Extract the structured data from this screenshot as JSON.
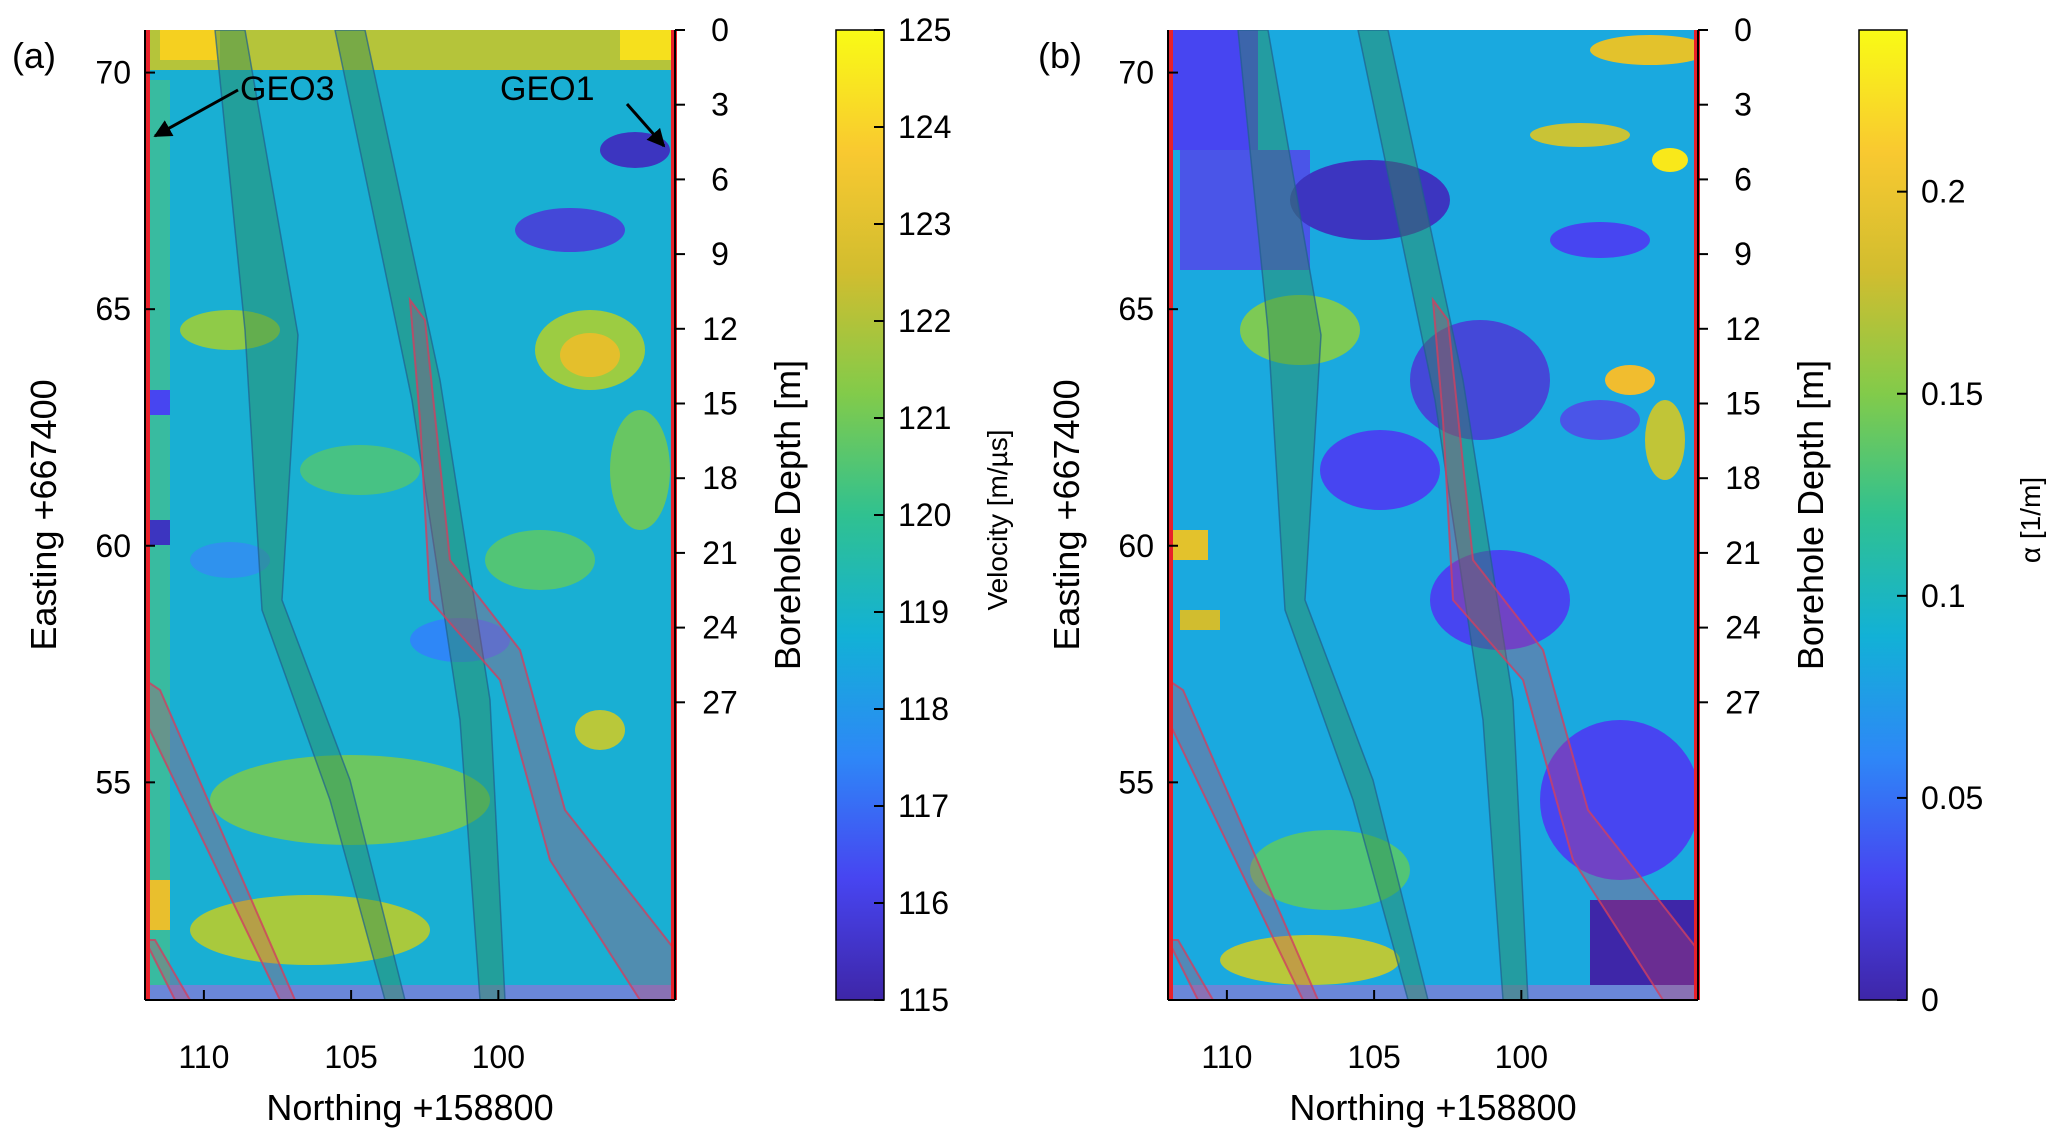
{
  "chart_data": [
    {
      "panel_label": "(a)",
      "type": "heatmap",
      "xlabel": "Northing +158800",
      "ylabel_left": "Easting +667400",
      "ylabel_right": "Borehole Depth [m]",
      "x_ticks": [
        "110",
        "105",
        "100"
      ],
      "x_tick_values": [
        110,
        105,
        100
      ],
      "xlim": [
        112,
        94
      ],
      "y_ticks": [
        "70",
        "65",
        "60",
        "55"
      ],
      "y_tick_values": [
        70,
        65,
        60,
        55
      ],
      "ylim": [
        50.4,
        70.9
      ],
      "depth_ticks": [
        "0",
        "3",
        "6",
        "9",
        "12",
        "15",
        "18",
        "21",
        "24",
        "27"
      ],
      "depth_tick_values": [
        0,
        3,
        6,
        9,
        12,
        15,
        18,
        21,
        24,
        27
      ],
      "colorbar": {
        "label": "Velocity [m/µs]",
        "ticks": [
          "125",
          "124",
          "123",
          "122",
          "121",
          "120",
          "119",
          "118",
          "117",
          "116",
          "115"
        ],
        "min": 115,
        "max": 125
      },
      "annotations": [
        {
          "text": "GEO3",
          "role": "left borehole"
        },
        {
          "text": "GEO1",
          "role": "right borehole"
        }
      ]
    },
    {
      "panel_label": "(b)",
      "type": "heatmap",
      "xlabel": "Northing +158800",
      "ylabel_left": "Easting +667400",
      "ylabel_right": "Borehole Depth [m]",
      "x_ticks": [
        "110",
        "105",
        "100"
      ],
      "x_tick_values": [
        110,
        105,
        100
      ],
      "xlim": [
        112,
        94
      ],
      "y_ticks": [
        "70",
        "65",
        "60",
        "55"
      ],
      "y_tick_values": [
        70,
        65,
        60,
        55
      ],
      "ylim": [
        50.4,
        70.9
      ],
      "depth_ticks": [
        "0",
        "3",
        "6",
        "9",
        "12",
        "15",
        "18",
        "21",
        "24",
        "27"
      ],
      "depth_tick_values": [
        0,
        3,
        6,
        9,
        12,
        15,
        18,
        21,
        24,
        27
      ],
      "colorbar": {
        "label": "α [1/m]",
        "ticks": [
          "0.2",
          "0.15",
          "0.1",
          "0.05",
          "0"
        ],
        "tick_values": [
          0.2,
          0.15,
          0.1,
          0.05,
          0
        ],
        "min": 0,
        "max": 0.24
      }
    }
  ],
  "colors": {
    "borehole": "#e8212a",
    "fracture_zone": "#2e8b57",
    "fault_zone": "#d04060",
    "colormap": [
      "#3e26a8",
      "#4745f1",
      "#2e87f7",
      "#12b1d6",
      "#30c190",
      "#82cb4a",
      "#d1bd2f",
      "#f9c930",
      "#f9fb15"
    ]
  }
}
